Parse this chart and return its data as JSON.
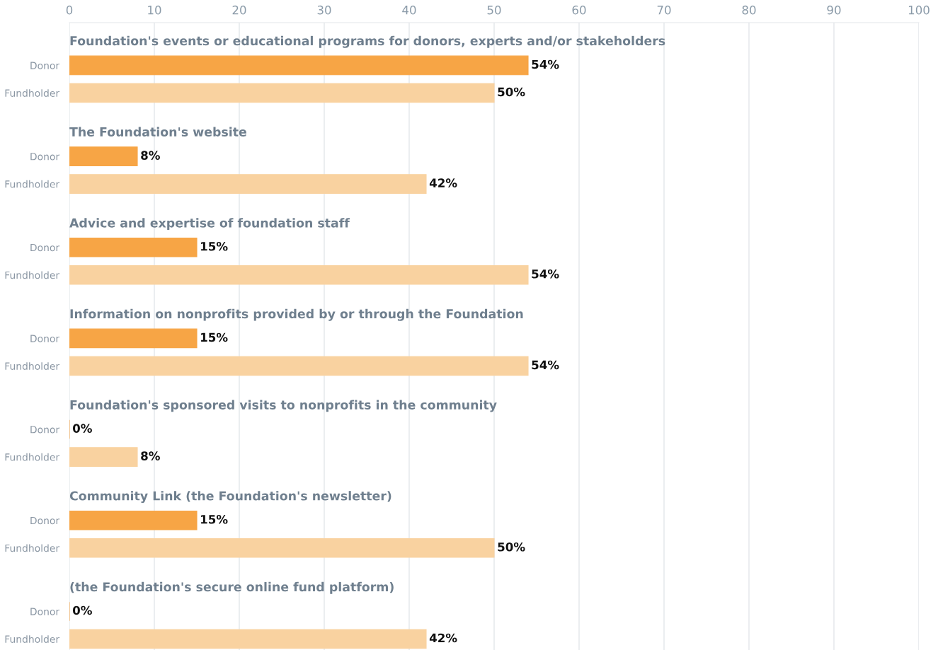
{
  "chart_data": {
    "type": "bar",
    "orientation": "horizontal",
    "categories": [
      "Foundation's events or educational programs for donors, experts and/or stakeholders",
      "The Foundation's website",
      "Advice and expertise of foundation staff",
      "Information on nonprofits provided by or through the Foundation",
      "Foundation's sponsored visits to nonprofits in the community",
      "Community Link (the Foundation's newsletter)",
      "(the Foundation's secure online fund platform)"
    ],
    "series": [
      {
        "name": "Donor",
        "color": "#f7a545",
        "values": [
          54,
          8,
          15,
          15,
          0,
          15,
          0
        ],
        "value_labels": [
          "54%",
          "8%",
          "15%",
          "15%",
          "0%",
          "15%",
          "0%"
        ]
      },
      {
        "name": "Fundholder",
        "color": "#f9d2a0",
        "values": [
          50,
          42,
          54,
          54,
          8,
          50,
          42
        ],
        "value_labels": [
          "50%",
          "42%",
          "54%",
          "54%",
          "8%",
          "50%",
          "42%"
        ]
      }
    ],
    "xlim": [
      0,
      100
    ],
    "xticks": [
      0,
      10,
      20,
      30,
      40,
      50,
      60,
      70,
      80,
      90,
      100
    ],
    "grid": "x",
    "legend": false
  }
}
